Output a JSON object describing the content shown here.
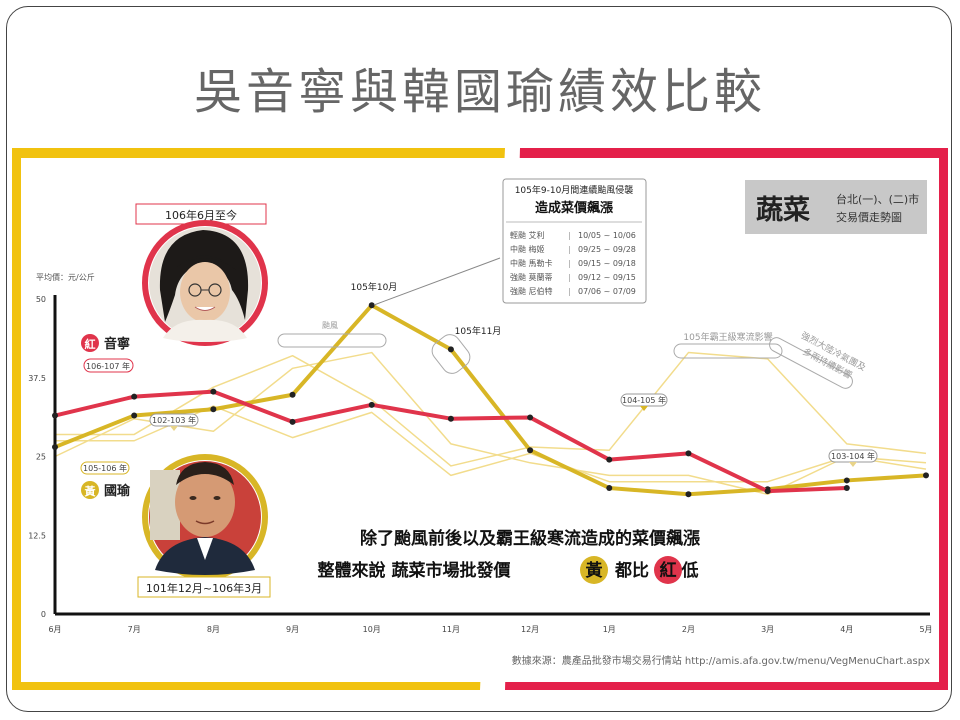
{
  "slide_title": "吳音寧與韓國瑜績效比較",
  "chart_data": {
    "type": "line",
    "title": "蔬菜",
    "subtitle_lines": [
      "台北(一)、(二)市",
      "交易價走勢圖"
    ],
    "ylabel": "平均價：元/公斤",
    "ylim": [
      0,
      50
    ],
    "yticks": [
      "50",
      "37.5",
      "25",
      "12.5",
      "0"
    ],
    "yticks_values": [
      50,
      37.5,
      25,
      12.5,
      0
    ],
    "x_labels": [
      "6月",
      "7月",
      "8月",
      "9月",
      "10月",
      "11月",
      "12月",
      "1月",
      "2月",
      "3月",
      "4月",
      "5月"
    ],
    "series": [
      {
        "name": "紅 音寧",
        "color": "#e0344b",
        "values": [
          31.5,
          34.5,
          35.3,
          30.5,
          33.2,
          31,
          31.2,
          24.5,
          25.5,
          19.5,
          20,
          null
        ]
      },
      {
        "name": "黃 國瑜",
        "color": "#d8b626",
        "values": [
          26.5,
          31.5,
          32.5,
          34.8,
          49,
          42,
          26,
          20,
          19,
          19.8,
          21.2,
          22
        ]
      }
    ],
    "faint_series": [
      {
        "values": [
          28.5,
          28.5,
          36,
          41,
          34,
          23.5,
          26.5,
          26,
          41.5,
          40.5,
          27,
          25.5
        ]
      },
      {
        "values": [
          25,
          31,
          29,
          39,
          41.5,
          27,
          24,
          22,
          22,
          19,
          25,
          23
        ]
      },
      {
        "values": [
          27.5,
          27.5,
          33,
          28,
          32,
          22,
          25.5,
          21,
          21,
          21,
          25,
          24
        ]
      }
    ]
  },
  "annotations": {
    "typhoon_box_title": "105年9-10月間連續颱風侵襲",
    "typhoon_box_subtitle": "造成菜價飆漲",
    "typhoon_list": [
      {
        "name": "輕颱 艾利",
        "dates": "10/05 ~ 10/06"
      },
      {
        "name": "中颱 梅姬",
        "dates": "09/25 ~ 09/28"
      },
      {
        "name": "中颱 馬勒卡",
        "dates": "09/15 ~ 09/18"
      },
      {
        "name": "強颱 莫蘭蒂",
        "dates": "09/12 ~ 09/15"
      },
      {
        "name": "強颱 尼伯特",
        "dates": "07/06 ~ 07/09"
      }
    ],
    "typhoon_tag": "颱風",
    "peak1": "105年10月",
    "peak2": "105年11月",
    "cold_tag": "105年霸王級寒流影響",
    "cold_tag2_line1": "強烈大陸冷氣團及",
    "cold_tag2_line2": "多雨持續影響",
    "red_period": "106年6月至今",
    "red_label_char": "紅",
    "red_label_name": "音寧",
    "red_year_tag": "106-107 年",
    "yellow_period": "101年12月~106年3月",
    "yellow_label_char": "黃",
    "yellow_label_name": "國瑜",
    "yellow_year_tag": "105-106 年",
    "tag_102_103": "102-103 年",
    "tag_104_105": "104-105 年",
    "tag_103_104": "103-104 年",
    "conclusion_line1": "除了颱風前後以及霸王級寒流造成的菜價飆漲",
    "conclusion_line2_a": "整體來說 蔬菜市場批發價",
    "conclusion_circle_yellow": "黃",
    "conclusion_line2_b": "都比",
    "conclusion_circle_red": "紅",
    "conclusion_line2_c": "低",
    "source": "數據來源：農產品批發市場交易行情站 http://amis.afa.gov.tw/menu/VegMenuChart.aspx"
  },
  "colors": {
    "red": "#e0344b",
    "yellow": "#d8b626",
    "faint": "#f2dc8c",
    "frame_red": "#e4204a",
    "frame_yellow": "#f1c20f"
  }
}
